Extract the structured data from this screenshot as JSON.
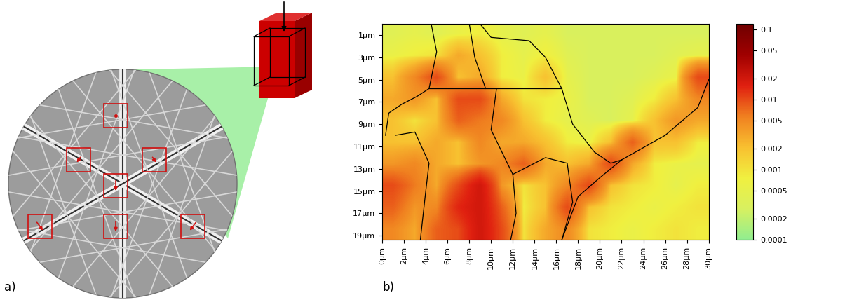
{
  "panel_labels": [
    "a)",
    "b)"
  ],
  "chart_data": {
    "type": "heatmap",
    "xlim": [
      0,
      30
    ],
    "ylim": [
      19.4,
      0
    ],
    "xticks": [
      {
        "value": 0,
        "label": "0µm"
      },
      {
        "value": 2,
        "label": "2µm"
      },
      {
        "value": 4,
        "label": "4µm"
      },
      {
        "value": 6,
        "label": "6µm"
      },
      {
        "value": 8,
        "label": "8µm"
      },
      {
        "value": 10,
        "label": "10µm"
      },
      {
        "value": 12,
        "label": "12µm"
      },
      {
        "value": 14,
        "label": "14µm"
      },
      {
        "value": 16,
        "label": "16µm"
      },
      {
        "value": 18,
        "label": "18µm"
      },
      {
        "value": 20,
        "label": "20µm"
      },
      {
        "value": 22,
        "label": "22µm"
      },
      {
        "value": 24,
        "label": "24µm"
      },
      {
        "value": 26,
        "label": "26µm"
      },
      {
        "value": 28,
        "label": "28µm"
      },
      {
        "value": 30,
        "label": "30µm"
      }
    ],
    "yticks": [
      {
        "value": 1,
        "label": "1µm"
      },
      {
        "value": 3,
        "label": "3µm"
      },
      {
        "value": 5,
        "label": "5µm"
      },
      {
        "value": 7,
        "label": "7µm"
      },
      {
        "value": 9,
        "label": "9µm"
      },
      {
        "value": 11,
        "label": "11µm"
      },
      {
        "value": 13,
        "label": "13µm"
      },
      {
        "value": 15,
        "label": "15µm"
      },
      {
        "value": 17,
        "label": "17µm"
      },
      {
        "value": 19,
        "label": "19µm"
      }
    ],
    "cells": [
      [
        0.0004,
        0.0005,
        0.0004,
        0.0006,
        0.0008,
        0.0005,
        0.0004,
        0.0005,
        0.0003,
        0.0003,
        0.0003,
        0.0003,
        0.0003,
        0.0003,
        0.0003
      ],
      [
        0.0006,
        0.0008,
        0.001,
        0.003,
        0.002,
        0.0008,
        0.0005,
        0.0008,
        0.0004,
        0.0003,
        0.0003,
        0.0003,
        0.0003,
        0.0004,
        0.0005
      ],
      [
        0.002,
        0.005,
        0.01,
        0.002,
        0.003,
        0.0008,
        0.0006,
        0.002,
        0.0005,
        0.0003,
        0.0003,
        0.0003,
        0.0004,
        0.0006,
        0.01
      ],
      [
        0.003,
        0.004,
        0.002,
        0.01,
        0.01,
        0.003,
        0.001,
        0.0008,
        0.0006,
        0.0003,
        0.0003,
        0.0004,
        0.0008,
        0.002,
        0.005
      ],
      [
        0.002,
        0.001,
        0.002,
        0.008,
        0.006,
        0.005,
        0.002,
        0.0008,
        0.0005,
        0.0004,
        0.0003,
        0.0005,
        0.002,
        0.004,
        0.003
      ],
      [
        0.002,
        0.002,
        0.003,
        0.002,
        0.005,
        0.003,
        0.003,
        0.002,
        0.0008,
        0.0006,
        0.002,
        0.008,
        0.002,
        0.002,
        0.0008
      ],
      [
        0.004,
        0.005,
        0.003,
        0.002,
        0.004,
        0.005,
        0.008,
        0.003,
        0.002,
        0.003,
        0.01,
        0.003,
        0.0008,
        0.0006,
        0.0005
      ],
      [
        0.01,
        0.006,
        0.003,
        0.01,
        0.02,
        0.004,
        0.001,
        0.002,
        0.005,
        0.01,
        0.002,
        0.001,
        0.0008,
        0.0005,
        0.0008
      ],
      [
        0.008,
        0.004,
        0.005,
        0.015,
        0.02,
        0.008,
        0.0008,
        0.002,
        0.01,
        0.002,
        0.001,
        0.0008,
        0.0006,
        0.0008,
        0.001
      ],
      [
        0.005,
        0.003,
        0.008,
        0.01,
        0.02,
        0.01,
        0.001,
        0.003,
        0.005,
        0.001,
        0.0008,
        0.0006,
        0.0008,
        0.001,
        0.0008
      ]
    ],
    "color_range": [
      0.0001,
      0.12
    ],
    "color_ticks": [
      0.0001,
      0.0002,
      0.0005,
      0.001,
      0.002,
      0.005,
      0.01,
      0.02,
      0.05,
      0.1
    ],
    "grain_boundaries": [
      [
        [
          4.5,
          0
        ],
        [
          5,
          2.5
        ],
        [
          4.3,
          5.8
        ],
        [
          3.2,
          6.5
        ],
        [
          1.8,
          7.2
        ],
        [
          0.6,
          8
        ],
        [
          0.3,
          10
        ]
      ],
      [
        [
          4.3,
          5.8
        ],
        [
          16.5,
          5.8
        ]
      ],
      [
        [
          8,
          0
        ],
        [
          8.5,
          3
        ],
        [
          9.5,
          5.8
        ]
      ],
      [
        [
          9,
          0
        ],
        [
          10,
          1.2
        ],
        [
          13.5,
          1.5
        ],
        [
          15,
          3
        ],
        [
          16.5,
          5.8
        ],
        [
          17.5,
          9
        ],
        [
          19.5,
          11.5
        ],
        [
          21,
          12.5
        ],
        [
          22,
          12.2
        ]
      ],
      [
        [
          10.5,
          5.8
        ],
        [
          10,
          9.5
        ],
        [
          11,
          11.5
        ],
        [
          12,
          13.5
        ],
        [
          12.3,
          17
        ],
        [
          11.8,
          19.4
        ]
      ],
      [
        [
          1.2,
          10
        ],
        [
          3,
          9.7
        ],
        [
          4.3,
          12.5
        ],
        [
          4,
          15
        ],
        [
          3.5,
          19.4
        ]
      ],
      [
        [
          12,
          13.5
        ],
        [
          15,
          12
        ],
        [
          17,
          12.5
        ],
        [
          17.5,
          16
        ],
        [
          16.5,
          19.4
        ]
      ],
      [
        [
          22,
          12.2
        ],
        [
          26,
          10
        ],
        [
          29,
          7.5
        ],
        [
          30,
          5
        ]
      ],
      [
        [
          22,
          12.2
        ],
        [
          20,
          13.8
        ],
        [
          18,
          15.5
        ],
        [
          16.5,
          19.4
        ]
      ]
    ]
  }
}
